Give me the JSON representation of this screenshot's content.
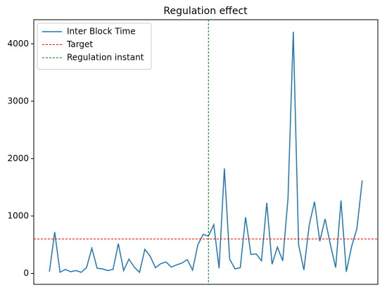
{
  "chart_data": {
    "type": "line",
    "title": "Regulation effect",
    "x": [
      0,
      1,
      2,
      3,
      4,
      5,
      6,
      7,
      8,
      9,
      10,
      11,
      12,
      13,
      14,
      15,
      16,
      17,
      18,
      19,
      20,
      21,
      22,
      23,
      24,
      25,
      26,
      27,
      28,
      29,
      30,
      31,
      32,
      33,
      34,
      35,
      36,
      37,
      38,
      39,
      40,
      41,
      42,
      43,
      44,
      45,
      46,
      47,
      48,
      49,
      50,
      51,
      52,
      53,
      54,
      55,
      56,
      57,
      58,
      59
    ],
    "series": [
      {
        "name": "Inter Block Time",
        "color": "#1f77b4",
        "values": [
          30,
          720,
          20,
          70,
          30,
          50,
          20,
          100,
          440,
          90,
          80,
          50,
          70,
          520,
          50,
          250,
          110,
          20,
          420,
          300,
          100,
          170,
          200,
          110,
          150,
          180,
          240,
          60,
          500,
          680,
          650,
          850,
          90,
          1830,
          250,
          80,
          100,
          980,
          330,
          340,
          220,
          1230,
          160,
          460,
          220,
          1300,
          4210,
          500,
          60,
          840,
          1250,
          560,
          950,
          500,
          100,
          1270,
          30,
          470,
          780,
          1620
        ]
      }
    ],
    "reference_lines": [
      {
        "name": "Target",
        "color": "#ff0000",
        "axis": "y",
        "value": 600
      },
      {
        "name": "Regulation instant",
        "color": "#008000",
        "axis": "x",
        "value": 30
      }
    ],
    "xlim": [
      -2.95,
      61.95
    ],
    "ylim": [
      -190,
      4420
    ],
    "yticks": [
      0,
      1000,
      2000,
      3000,
      4000
    ],
    "legend": "upper left"
  }
}
